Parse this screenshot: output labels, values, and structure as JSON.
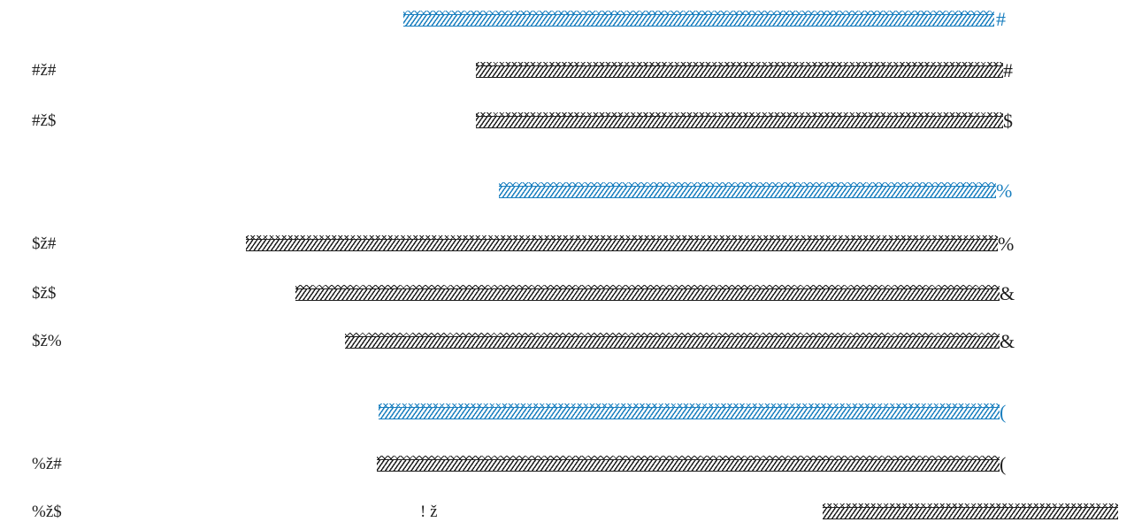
{
  "colors": {
    "accent": "#1a7fbf",
    "text": "#222222"
  },
  "rows": [
    {
      "label": "",
      "end": "#",
      "accent": true
    },
    {
      "label": "#ž#",
      "end": "#",
      "accent": false
    },
    {
      "label": "#ž$",
      "end": "$",
      "accent": false
    },
    {
      "label": "",
      "end": "%",
      "accent": true
    },
    {
      "label": "$ž#",
      "end": "%",
      "accent": false
    },
    {
      "label": "$ž$",
      "end": "&",
      "accent": false
    },
    {
      "label": "$ž%",
      "end": "&",
      "accent": false
    },
    {
      "label": "",
      "end": "(",
      "accent": true
    },
    {
      "label": "%ž#",
      "end": "(",
      "accent": false
    },
    {
      "label": "%ž$",
      "mid": "! ž",
      "end": "",
      "accent": false
    }
  ]
}
